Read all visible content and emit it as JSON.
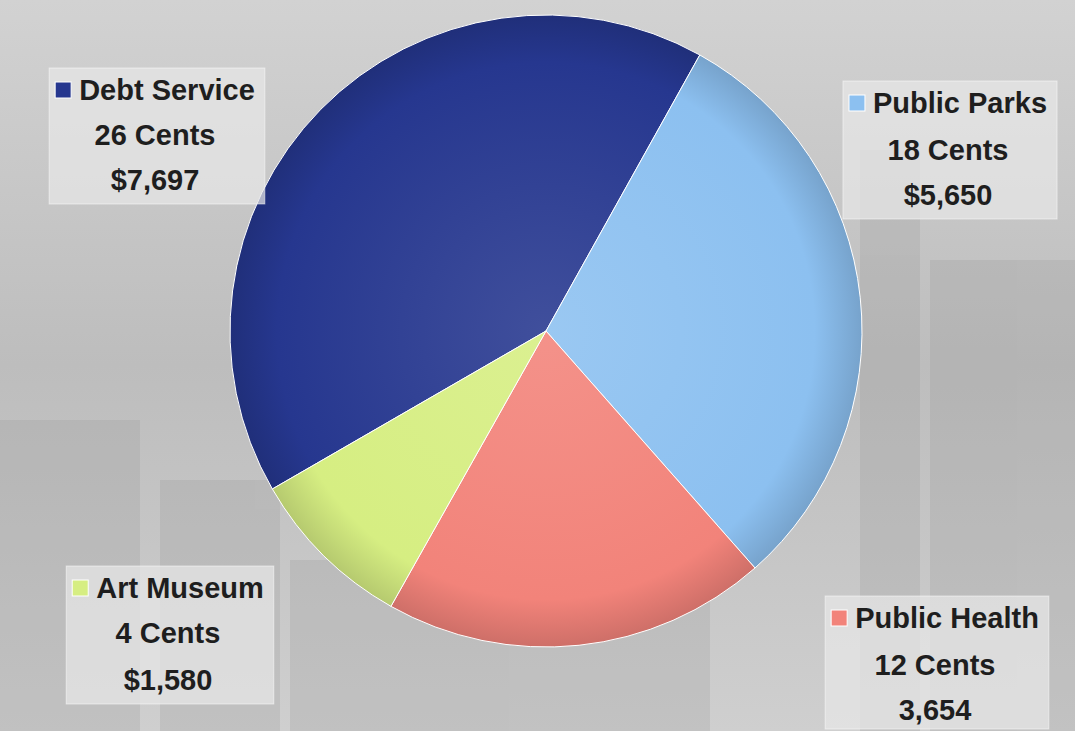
{
  "chart_data": {
    "type": "pie",
    "categories": [
      "Debt Service",
      "Public Parks",
      "Public Health",
      "Art Museum"
    ],
    "values": [
      7697,
      5650,
      3654,
      1580
    ],
    "value_labels": [
      "$7,697",
      "$5,650",
      "3,654",
      "$1,580"
    ],
    "cents": [
      26,
      18,
      12,
      4
    ],
    "cents_labels": [
      "26 Cents",
      "18 Cents",
      "12 Cents",
      "4 Cents"
    ],
    "colors": [
      "#26378f",
      "#8cc0f0",
      "#f2837a",
      "#d6ee82"
    ]
  }
}
